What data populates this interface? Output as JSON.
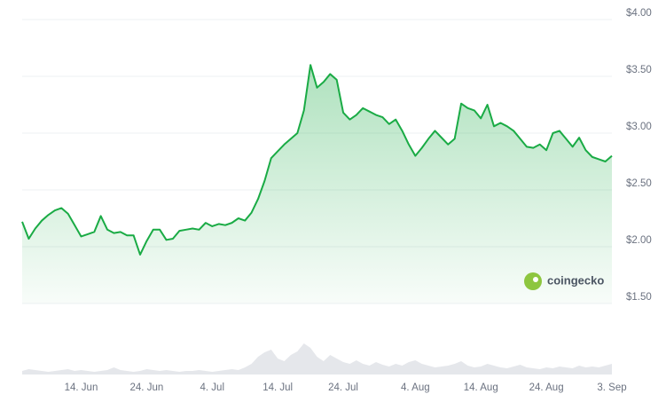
{
  "chart_data": {
    "type": "line",
    "x": [
      "5. Jun",
      "6. Jun",
      "7. Jun",
      "8. Jun",
      "9. Jun",
      "10. Jun",
      "11. Jun",
      "12. Jun",
      "13. Jun",
      "14. Jun",
      "15. Jun",
      "16. Jun",
      "17. Jun",
      "18. Jun",
      "19. Jun",
      "20. Jun",
      "21. Jun",
      "22. Jun",
      "23. Jun",
      "24. Jun",
      "25. Jun",
      "26. Jun",
      "27. Jun",
      "28. Jun",
      "29. Jun",
      "30. Jun",
      "1. Jul",
      "2. Jul",
      "3. Jul",
      "4. Jul",
      "5. Jul",
      "6. Jul",
      "7. Jul",
      "8. Jul",
      "9. Jul",
      "10. Jul",
      "11. Jul",
      "12. Jul",
      "13. Jul",
      "14. Jul",
      "15. Jul",
      "16. Jul",
      "17. Jul",
      "18. Jul",
      "19. Jul",
      "20. Jul",
      "21. Jul",
      "22. Jul",
      "23. Jul",
      "24. Jul",
      "25. Jul",
      "26. Jul",
      "27. Jul",
      "28. Jul",
      "29. Jul",
      "30. Jul",
      "31. Jul",
      "1. Aug",
      "2. Aug",
      "3. Aug",
      "4. Aug",
      "5. Aug",
      "6. Aug",
      "7. Aug",
      "8. Aug",
      "9. Aug",
      "10. Aug",
      "11. Aug",
      "12. Aug",
      "13. Aug",
      "14. Aug",
      "15. Aug",
      "16. Aug",
      "17. Aug",
      "18. Aug",
      "19. Aug",
      "20. Aug",
      "21. Aug",
      "22. Aug",
      "23. Aug",
      "24. Aug",
      "25. Aug",
      "26. Aug",
      "27. Aug",
      "28. Aug",
      "29. Aug",
      "30. Aug",
      "31. Aug",
      "1. Sep",
      "2. Sep",
      "3. Sep"
    ],
    "series": [
      {
        "color": "#1aab45",
        "values": [
          2.22,
          2.07,
          2.16,
          2.23,
          2.28,
          2.32,
          2.34,
          2.29,
          2.19,
          2.09,
          2.11,
          2.13,
          2.27,
          2.15,
          2.12,
          2.13,
          2.1,
          2.1,
          1.93,
          2.05,
          2.15,
          2.15,
          2.06,
          2.07,
          2.14,
          2.15,
          2.16,
          2.15,
          2.21,
          2.18,
          2.2,
          2.19,
          2.21,
          2.25,
          2.23,
          2.3,
          2.42,
          2.58,
          2.78,
          2.84,
          2.9,
          2.95,
          3.0,
          3.2,
          3.6,
          3.4,
          3.45,
          3.52,
          3.47,
          3.18,
          3.12,
          3.16,
          3.22,
          3.19,
          3.16,
          3.14,
          3.08,
          3.12,
          3.02,
          2.9,
          2.8,
          2.87,
          2.95,
          3.02,
          2.96,
          2.9,
          2.95,
          3.26,
          3.22,
          3.2,
          3.13,
          3.25,
          3.06,
          3.09,
          3.06,
          3.02,
          2.95,
          2.88,
          2.87,
          2.9,
          2.85,
          3.0,
          3.02,
          2.95,
          2.88,
          2.96,
          2.85,
          2.79,
          2.77,
          2.75,
          2.8
        ]
      }
    ],
    "volume": {
      "color": "#e5e7eb",
      "ylim": [
        0,
        40
      ],
      "values": [
        4,
        6,
        5,
        4,
        3,
        4,
        5,
        6,
        4,
        5,
        4,
        3,
        4,
        5,
        8,
        5,
        4,
        3,
        4,
        6,
        5,
        4,
        5,
        4,
        3,
        4,
        4,
        5,
        4,
        3,
        4,
        5,
        6,
        5,
        8,
        12,
        20,
        25,
        28,
        18,
        15,
        22,
        26,
        35,
        30,
        20,
        15,
        22,
        18,
        14,
        12,
        16,
        12,
        10,
        14,
        11,
        9,
        12,
        10,
        14,
        16,
        12,
        10,
        8,
        9,
        10,
        12,
        15,
        10,
        8,
        9,
        12,
        10,
        8,
        7,
        9,
        11,
        8,
        7,
        6,
        8,
        7,
        9,
        8,
        7,
        10,
        8,
        9,
        8,
        10,
        12
      ]
    },
    "ylim": [
      1.5,
      4.0
    ],
    "yticks": [
      {
        "value": 1.5,
        "label": "$1.50"
      },
      {
        "value": 2.0,
        "label": "$2.00"
      },
      {
        "value": 2.5,
        "label": "$2.50"
      },
      {
        "value": 3.0,
        "label": "$3.00"
      },
      {
        "value": 3.5,
        "label": "$3.50"
      },
      {
        "value": 4.0,
        "label": "$4.00"
      }
    ],
    "xticks": [
      "14. Jun",
      "24. Jun",
      "4. Jul",
      "14. Jul",
      "24. Jul",
      "4. Aug",
      "14. Aug",
      "24. Aug",
      "3. Sep"
    ],
    "grid": true,
    "watermark": "coingecko"
  }
}
